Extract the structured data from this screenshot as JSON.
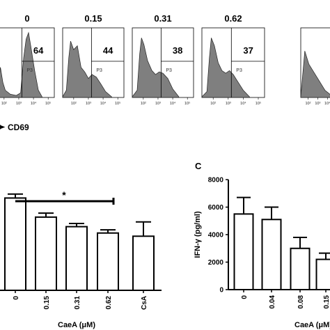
{
  "chart_data": [
    {
      "type": "histogram",
      "panel": "flow-cytometry",
      "xlabel": "CD69",
      "gate_label": "P3",
      "tick_labels": [
        "10²",
        "10³",
        "10⁴",
        "10⁵"
      ],
      "histograms": [
        {
          "title": "0",
          "percent": "64"
        },
        {
          "title": "0.15",
          "percent": "44"
        },
        {
          "title": "0.31",
          "percent": "38"
        },
        {
          "title": "0.62",
          "percent": "37"
        },
        {
          "title": "",
          "percent": ""
        }
      ]
    },
    {
      "type": "bar",
      "panel": "B",
      "categories": [
        "0",
        "0.15",
        "0.31",
        "0.62",
        "CsA"
      ],
      "values": [
        5800,
        4600,
        4000,
        3600,
        3400
      ],
      "errors": [
        250,
        250,
        200,
        200,
        900
      ],
      "xlabel": "CaeA (μM)",
      "ylim": [
        0,
        7000
      ],
      "significance": {
        "from": "0",
        "to": "0.62",
        "label": "*"
      }
    },
    {
      "type": "bar",
      "panel": "C",
      "panel_label": "C",
      "categories": [
        "0",
        "0.04",
        "0.08",
        "0.15"
      ],
      "values": [
        5500,
        5100,
        3000,
        2200
      ],
      "errors": [
        1200,
        900,
        800,
        450
      ],
      "xlabel": "CaeA (μM)",
      "ylabel": "IFN-γ (pg/ml)",
      "yticks": [
        "0",
        "2000",
        "4000",
        "6000",
        "8000"
      ],
      "ylim": [
        0,
        8000
      ]
    }
  ]
}
